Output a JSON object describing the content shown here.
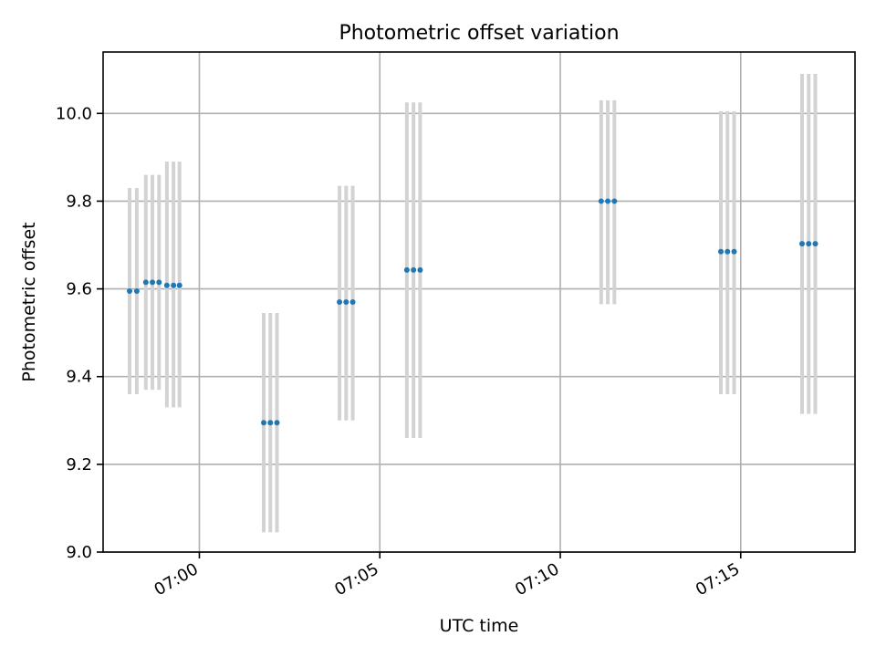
{
  "chart_data": {
    "type": "scatter",
    "title": "Photometric offset variation",
    "xlabel": "UTC time",
    "ylabel": "Photometric offset",
    "xlim": [
      "06:57:20",
      "07:18:10"
    ],
    "ylim": [
      9.0,
      10.14
    ],
    "x_ticks": [
      "07:00",
      "07:05",
      "07:10",
      "07:15"
    ],
    "y_ticks": [
      "9.0",
      "9.2",
      "9.4",
      "9.6",
      "9.8",
      "10.0"
    ],
    "grid": true,
    "colors": {
      "point": "#1f77b4",
      "errorbar": "#d3d3d3",
      "grid": "#b0b0b0"
    },
    "series": [
      {
        "points": [
          {
            "x": "06:58:04",
            "y": 9.595,
            "ylow": 9.36,
            "yhigh": 9.83
          },
          {
            "x": "06:58:16",
            "y": 9.595,
            "ylow": 9.36,
            "yhigh": 9.83
          },
          {
            "x": "06:58:31",
            "y": 9.615,
            "ylow": 9.37,
            "yhigh": 9.86
          },
          {
            "x": "06:58:42",
            "y": 9.615,
            "ylow": 9.37,
            "yhigh": 9.86
          },
          {
            "x": "06:58:53",
            "y": 9.615,
            "ylow": 9.37,
            "yhigh": 9.86
          },
          {
            "x": "06:59:06",
            "y": 9.608,
            "ylow": 9.33,
            "yhigh": 9.89
          },
          {
            "x": "06:59:17",
            "y": 9.608,
            "ylow": 9.33,
            "yhigh": 9.89
          },
          {
            "x": "06:59:27",
            "y": 9.608,
            "ylow": 9.33,
            "yhigh": 9.89
          },
          {
            "x": "07:01:47",
            "y": 9.295,
            "ylow": 9.045,
            "yhigh": 9.545
          },
          {
            "x": "07:01:58",
            "y": 9.295,
            "ylow": 9.045,
            "yhigh": 9.545
          },
          {
            "x": "07:02:09",
            "y": 9.295,
            "ylow": 9.045,
            "yhigh": 9.545
          },
          {
            "x": "07:03:53",
            "y": 9.57,
            "ylow": 9.3,
            "yhigh": 9.835
          },
          {
            "x": "07:04:04",
            "y": 9.57,
            "ylow": 9.3,
            "yhigh": 9.835
          },
          {
            "x": "07:04:15",
            "y": 9.57,
            "ylow": 9.3,
            "yhigh": 9.835
          },
          {
            "x": "07:05:45",
            "y": 9.643,
            "ylow": 9.26,
            "yhigh": 10.025
          },
          {
            "x": "07:05:56",
            "y": 9.643,
            "ylow": 9.26,
            "yhigh": 10.025
          },
          {
            "x": "07:06:07",
            "y": 9.643,
            "ylow": 9.26,
            "yhigh": 10.025
          },
          {
            "x": "07:11:08",
            "y": 9.8,
            "ylow": 9.565,
            "yhigh": 10.03
          },
          {
            "x": "07:11:19",
            "y": 9.8,
            "ylow": 9.565,
            "yhigh": 10.03
          },
          {
            "x": "07:11:30",
            "y": 9.8,
            "ylow": 9.565,
            "yhigh": 10.03
          },
          {
            "x": "07:14:27",
            "y": 9.685,
            "ylow": 9.36,
            "yhigh": 10.005
          },
          {
            "x": "07:14:38",
            "y": 9.685,
            "ylow": 9.36,
            "yhigh": 10.005
          },
          {
            "x": "07:14:49",
            "y": 9.685,
            "ylow": 9.36,
            "yhigh": 10.005
          },
          {
            "x": "07:16:42",
            "y": 9.703,
            "ylow": 9.315,
            "yhigh": 10.09
          },
          {
            "x": "07:16:53",
            "y": 9.703,
            "ylow": 9.315,
            "yhigh": 10.09
          },
          {
            "x": "07:17:04",
            "y": 9.703,
            "ylow": 9.315,
            "yhigh": 10.09
          }
        ]
      }
    ]
  }
}
